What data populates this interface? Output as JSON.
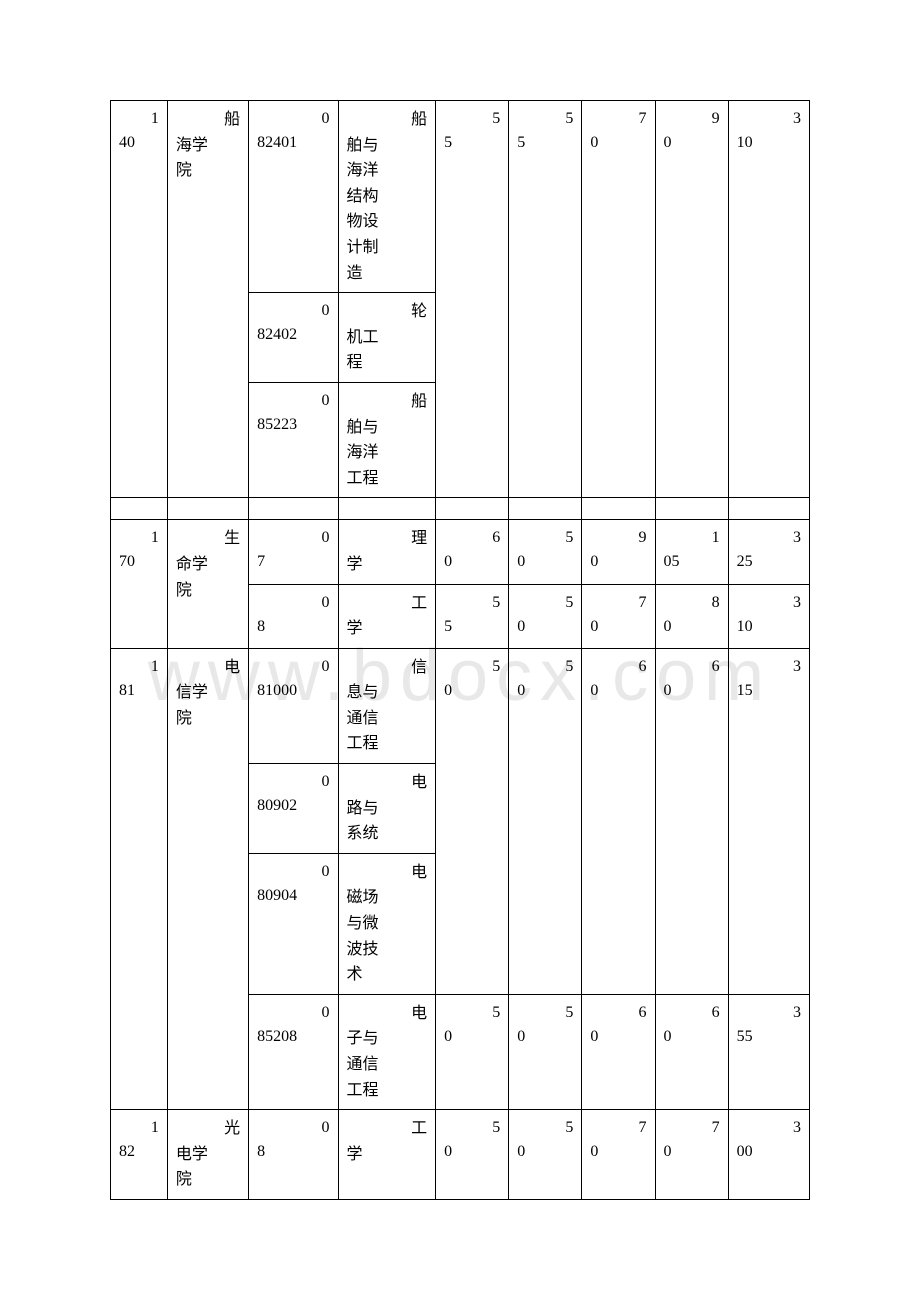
{
  "watermark": "www.bdocx.com",
  "table": {
    "colors": {
      "border": "#000000",
      "background": "#ffffff",
      "text": "#000000",
      "watermark": "#e8e8e8"
    },
    "rows": [
      {
        "id_top": "1",
        "id_bottom": "40",
        "dept": "船海学院",
        "majors": [
          {
            "code_top": "0",
            "code_bottom": "82401",
            "name": "船舶与海洋结构物设计制造"
          },
          {
            "code_top": "0",
            "code_bottom": "82402",
            "name": "轮机工程"
          },
          {
            "code_top": "0",
            "code_bottom": "85223",
            "name": "船舶与海洋工程"
          }
        ],
        "c5_top": "5",
        "c5_bottom": "5",
        "c6_top": "5",
        "c6_bottom": "5",
        "c7_top": "7",
        "c7_bottom": "0",
        "c8_top": "9",
        "c8_bottom": "0",
        "c9_top": "3",
        "c9_bottom": "10"
      },
      {
        "id_top": "1",
        "id_bottom": "70",
        "dept": "生命学院",
        "sub": [
          {
            "code_top": "0",
            "code_bottom": "7",
            "name": "理学",
            "c5_top": "6",
            "c5_bottom": "0",
            "c6_top": "5",
            "c6_bottom": "0",
            "c7_top": "9",
            "c7_bottom": "0",
            "c8_top": "1",
            "c8_bottom": "05",
            "c9_top": "3",
            "c9_bottom": "25"
          },
          {
            "code_top": "0",
            "code_bottom": "8",
            "name": "工学",
            "c5_top": "5",
            "c5_bottom": "5",
            "c6_top": "5",
            "c6_bottom": "0",
            "c7_top": "7",
            "c7_bottom": "0",
            "c8_top": "8",
            "c8_bottom": "0",
            "c9_top": "3",
            "c9_bottom": "10"
          }
        ]
      },
      {
        "id_top": "1",
        "id_bottom": "81",
        "dept": "电信学院",
        "groups": [
          {
            "majors": [
              {
                "code_top": "0",
                "code_bottom": "81000",
                "name": "信息与通信工程"
              },
              {
                "code_top": "0",
                "code_bottom": "80902",
                "name": "电路与系统"
              },
              {
                "code_top": "0",
                "code_bottom": "80904",
                "name": "电磁场与微波技术"
              }
            ],
            "c5_top": "5",
            "c5_bottom": "0",
            "c6_top": "5",
            "c6_bottom": "0",
            "c7_top": "6",
            "c7_bottom": "0",
            "c8_top": "6",
            "c8_bottom": "0",
            "c9_top": "3",
            "c9_bottom": "15"
          },
          {
            "majors": [
              {
                "code_top": "0",
                "code_bottom": "85208",
                "name": "电子与通信工程"
              }
            ],
            "c5_top": "5",
            "c5_bottom": "0",
            "c6_top": "5",
            "c6_bottom": "0",
            "c7_top": "6",
            "c7_bottom": "0",
            "c8_top": "6",
            "c8_bottom": "0",
            "c9_top": "3",
            "c9_bottom": "55"
          }
        ]
      },
      {
        "id_top": "1",
        "id_bottom": "82",
        "dept": "光电学院",
        "sub": [
          {
            "code_top": "0",
            "code_bottom": "8",
            "name": "工学",
            "c5_top": "5",
            "c5_bottom": "0",
            "c6_top": "5",
            "c6_bottom": "0",
            "c7_top": "7",
            "c7_bottom": "0",
            "c8_top": "7",
            "c8_bottom": "0",
            "c9_top": "3",
            "c9_bottom": "00"
          }
        ]
      }
    ]
  }
}
